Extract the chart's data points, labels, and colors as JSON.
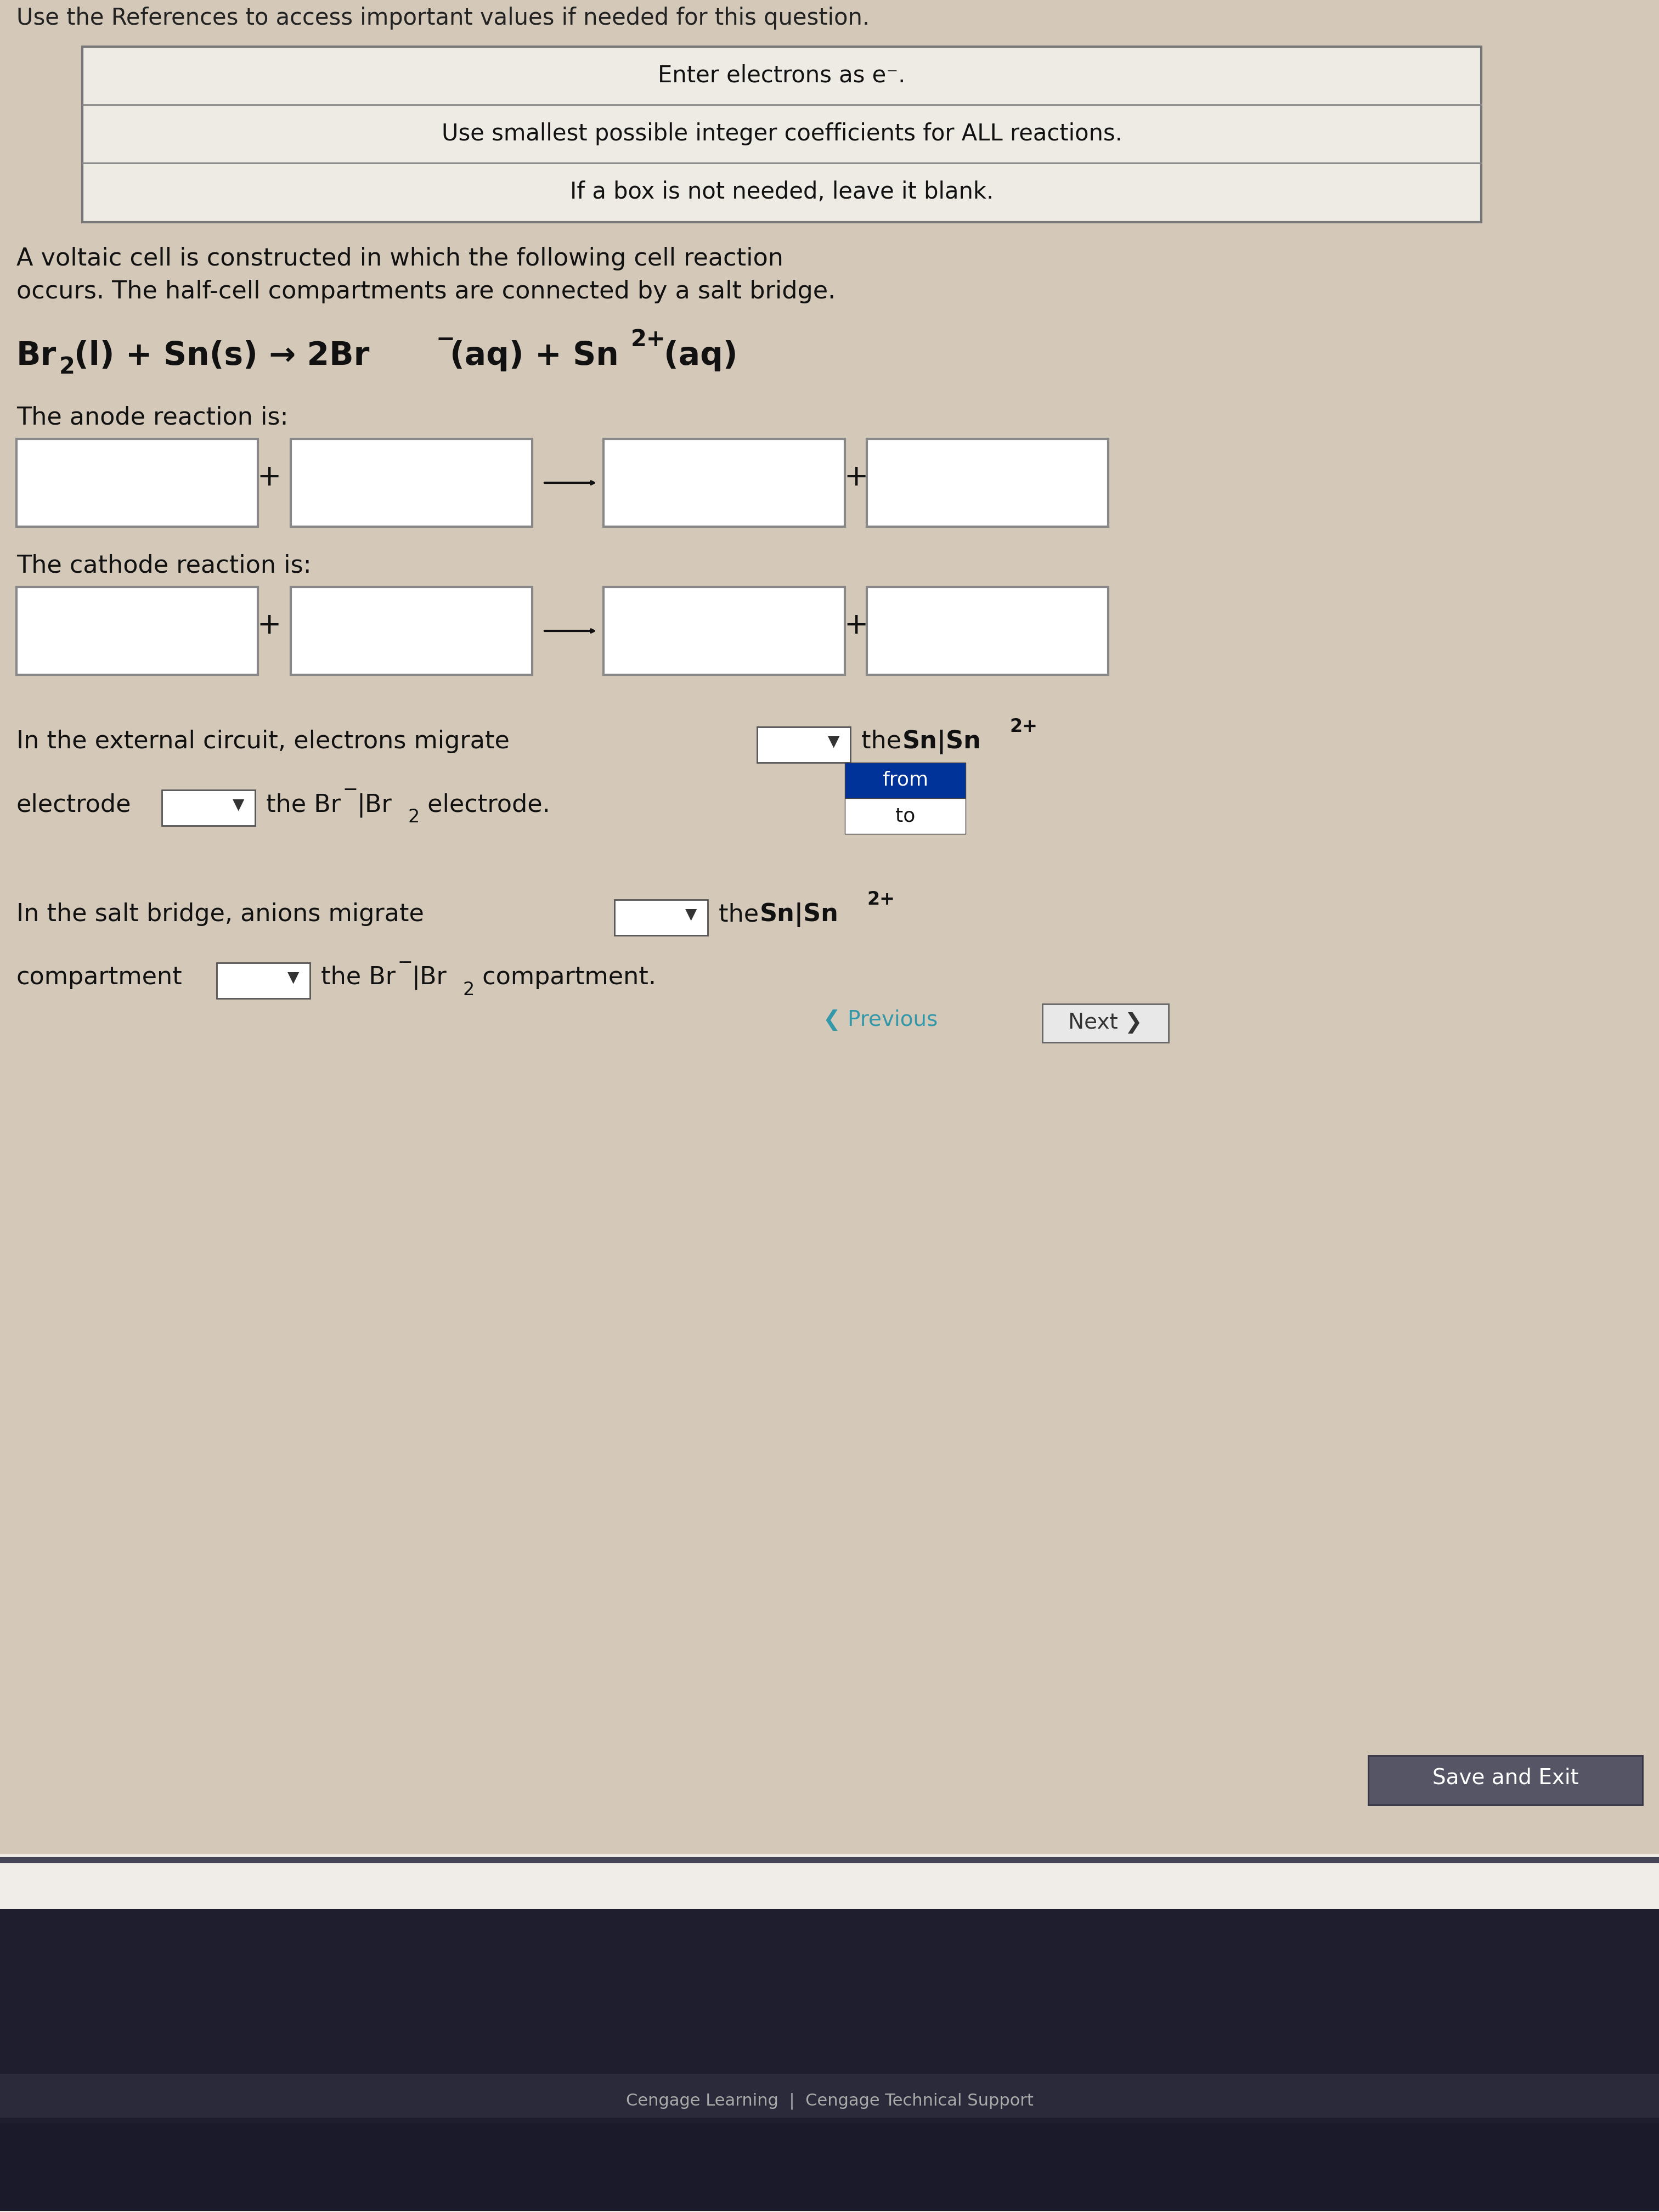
{
  "page_bg": "#c8b9a8",
  "white_area_bg": "#d8cfc4",
  "header_line": "Use the References to access important values if needed for this question.",
  "instruction_box": {
    "lines": [
      "Enter electrons as e⁻.",
      "Use smallest possible integer coefficients for ALL reactions.",
      "If a box is not needed, leave it blank."
    ],
    "bg": "#eeebe5",
    "border": "#777777"
  },
  "problem_text_line1": "A voltaic cell is constructed in which the following cell reaction",
  "problem_text_line2": "occurs. The half-cell compartments are connected by a salt bridge.",
  "anode_label": "The anode reaction is:",
  "cathode_label": "The cathode reaction is:",
  "external_line1": "In the external circuit, electrons migrate",
  "external_line1b": "the Sn|Sn²⁺",
  "external_label2": "electrode",
  "external_line2b": "the Br⁻|Br₂ electrode.",
  "salt_line1": "In the salt bridge, anions migrate",
  "salt_line1b": "the Sn|Sn²⁺",
  "salt_label2": "compartment",
  "salt_line2b": "the Br⁻|Br₂ compartment.",
  "prev_button": "Previous",
  "next_button": "Next",
  "save_button": "Save and Exit",
  "footer_text": "Cengage Learning  |  Cengage Technical Support",
  "bottom_bar_color": "#1a1a2e",
  "taskbar_color": "#2a2a3e"
}
